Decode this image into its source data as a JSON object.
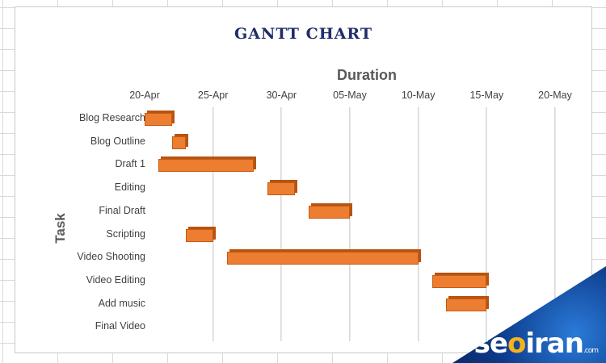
{
  "chart_data": {
    "type": "bar",
    "title": "GANTT CHART",
    "xlabel": "Duration",
    "ylabel": "Task",
    "x_ticks": [
      "20-Apr",
      "25-Apr",
      "30-Apr",
      "05-May",
      "10-May",
      "15-May",
      "20-May"
    ],
    "x_range": [
      "2024-04-20",
      "2024-05-20"
    ],
    "tasks": [
      {
        "name": "Blog Research",
        "start": "2024-04-20",
        "end": "2024-04-22"
      },
      {
        "name": "Blog Outline",
        "start": "2024-04-22",
        "end": "2024-04-23"
      },
      {
        "name": "Draft 1",
        "start": "2024-04-21",
        "end": "2024-04-28"
      },
      {
        "name": "Editing",
        "start": "2024-04-29",
        "end": "2024-05-01"
      },
      {
        "name": "Final Draft",
        "start": "2024-05-02",
        "end": "2024-05-05"
      },
      {
        "name": "Scripting",
        "start": "2024-04-23",
        "end": "2024-04-25"
      },
      {
        "name": "Video Shooting",
        "start": "2024-04-26",
        "end": "2024-05-10"
      },
      {
        "name": "Video Editing",
        "start": "2024-05-11",
        "end": "2024-05-15"
      },
      {
        "name": "Add music",
        "start": "2024-05-12",
        "end": "2024-05-15"
      },
      {
        "name": "Final Video",
        "start": null,
        "end": null
      }
    ],
    "bar_color": "#ed7d31",
    "title_color": "#1f2d6b",
    "grid": true
  },
  "watermark": {
    "text_before": "se",
    "text_accent": "o",
    "text_after": "iran",
    "suffix": ".com"
  }
}
